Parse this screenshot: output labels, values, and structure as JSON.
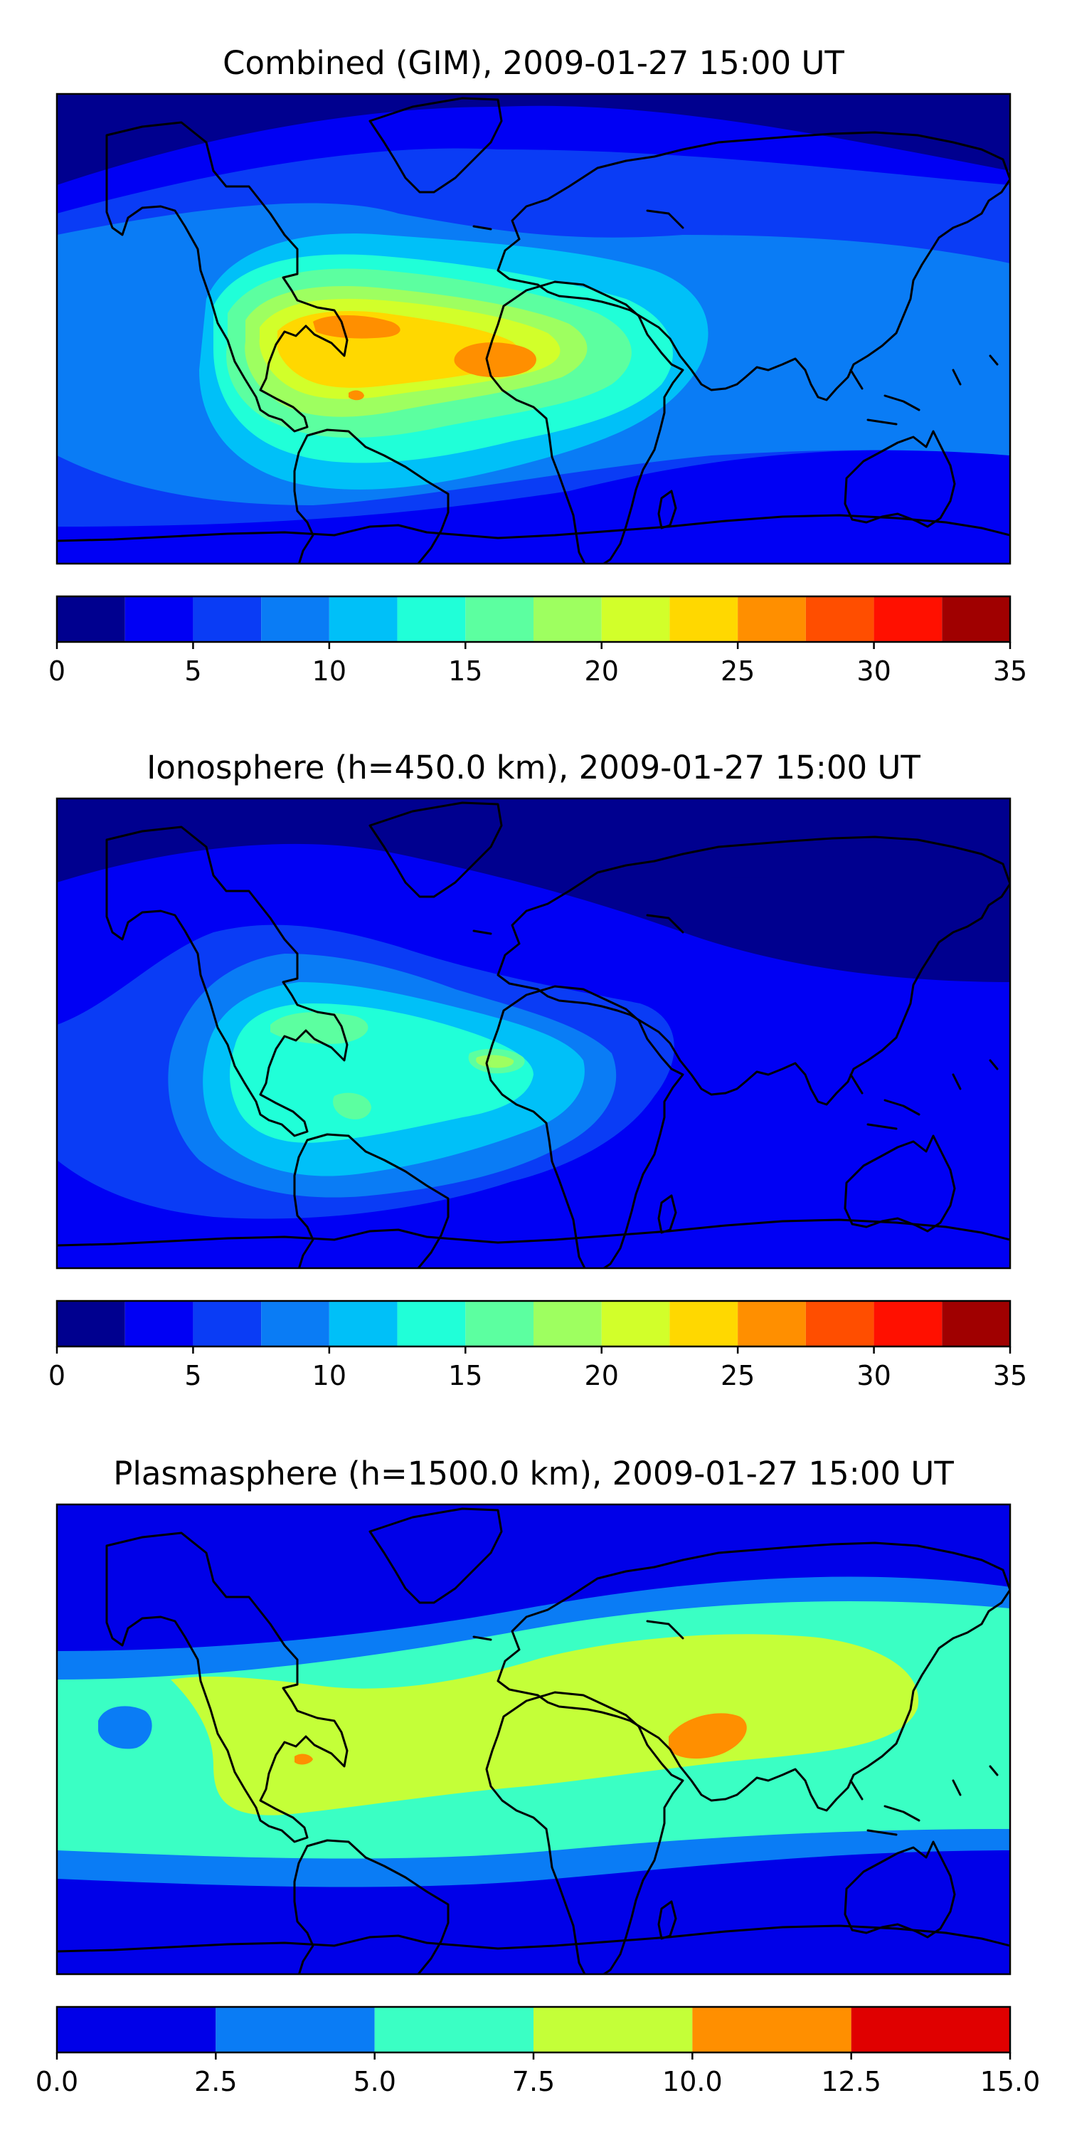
{
  "chart_data": [
    {
      "type": "heatmap",
      "title": "Combined (GIM), 2009-01-27 15:00 UT",
      "colorbar": {
        "ticks": [
          "0",
          "5",
          "10",
          "15",
          "20",
          "25",
          "30",
          "35"
        ],
        "range": [
          0,
          35
        ],
        "levels": [
          0,
          2.5,
          5,
          7.5,
          10,
          12.5,
          15,
          17.5,
          20,
          22.5,
          25,
          27.5,
          30,
          32.5,
          35
        ],
        "colors": [
          "#00008f",
          "#0000f4",
          "#0a3cf5",
          "#0a7cf5",
          "#00c0f8",
          "#20ffd8",
          "#5cffa0",
          "#9eff60",
          "#d2ff2a",
          "#ffd800",
          "#ff8f00",
          "#ff4e00",
          "#ff1000",
          "#a00000"
        ]
      }
    },
    {
      "type": "heatmap",
      "title": "Ionosphere  (h=450.0 km), 2009-01-27 15:00 UT",
      "colorbar": {
        "ticks": [
          "0",
          "5",
          "10",
          "15",
          "20",
          "25",
          "30",
          "35"
        ],
        "range": [
          0,
          35
        ],
        "levels": [
          0,
          2.5,
          5,
          7.5,
          10,
          12.5,
          15,
          17.5,
          20,
          22.5,
          25,
          27.5,
          30,
          32.5,
          35
        ],
        "colors": [
          "#00008f",
          "#0000f4",
          "#0a3cf5",
          "#0a7cf5",
          "#00c0f8",
          "#20ffd8",
          "#5cffa0",
          "#9eff60",
          "#d2ff2a",
          "#ffd800",
          "#ff8f00",
          "#ff4e00",
          "#ff1000",
          "#a00000"
        ]
      }
    },
    {
      "type": "heatmap",
      "title": "Plasmasphere (h=1500.0 km), 2009-01-27 15:00 UT",
      "colorbar": {
        "ticks": [
          "0.0",
          "2.5",
          "5.0",
          "7.5",
          "10.0",
          "12.5",
          "15.0"
        ],
        "range": [
          0,
          15
        ],
        "levels": [
          0,
          2.5,
          5,
          7.5,
          10,
          12.5,
          15
        ],
        "colors": [
          "#0000e8",
          "#0a7cf5",
          "#3affc4",
          "#c4ff38",
          "#ff8f00",
          "#e00000"
        ]
      }
    }
  ]
}
